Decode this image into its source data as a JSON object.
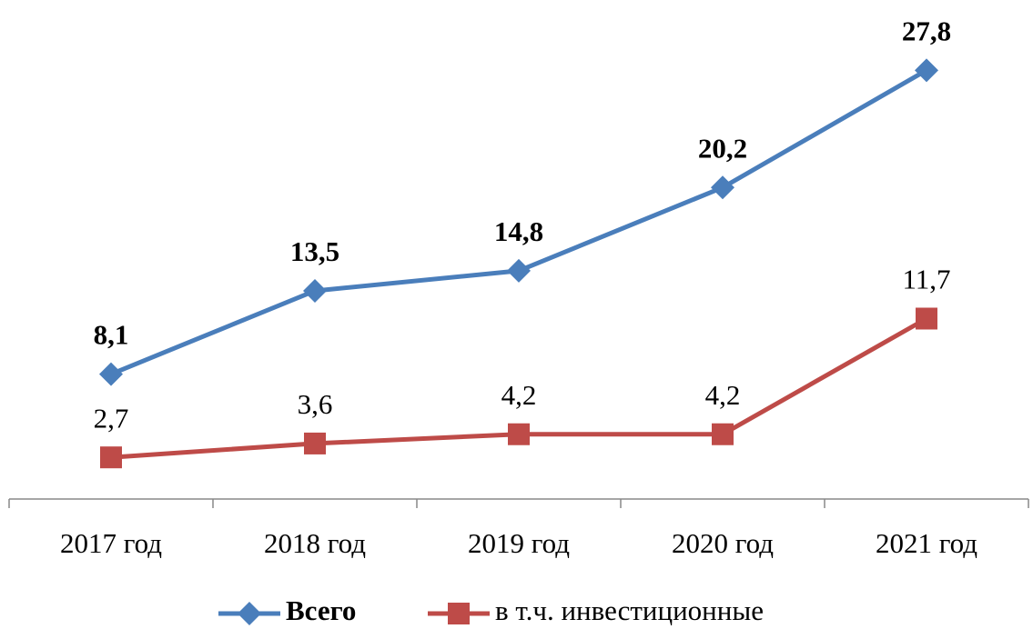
{
  "chart_data": {
    "type": "line",
    "categories": [
      "2017 год",
      "2018 год",
      "2019 год",
      "2020 год",
      "2021 год"
    ],
    "series": [
      {
        "name": "Всего",
        "color": "#4a7ebb",
        "values": [
          8.1,
          13.5,
          14.8,
          20.2,
          27.8
        ],
        "value_labels": [
          "8,1",
          "13,5",
          "14,8",
          "20,2",
          "27,8"
        ]
      },
      {
        "name": "в т.ч. инвестиционные",
        "color": "#be4b48",
        "values": [
          2.7,
          3.6,
          4.2,
          4.2,
          11.7
        ],
        "value_labels": [
          "2,7",
          "3,6",
          "4,2",
          "4,2",
          "11,7"
        ]
      }
    ],
    "ylim": [
      0,
      30
    ]
  }
}
